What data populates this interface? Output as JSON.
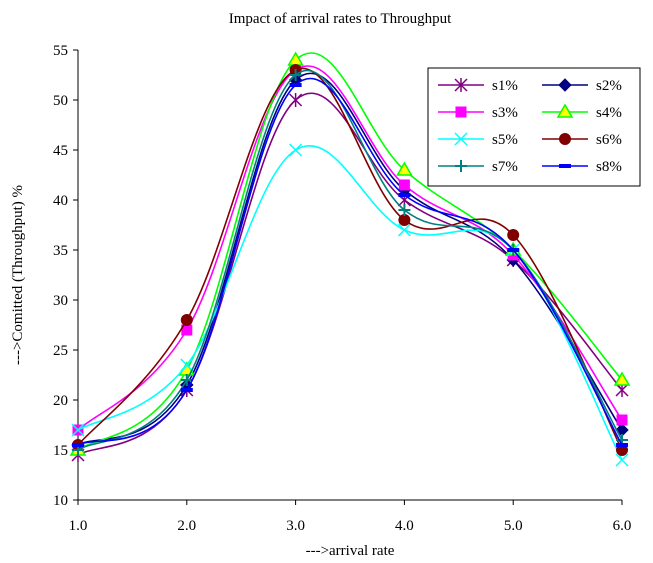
{
  "chart_data": {
    "type": "line",
    "title": "Impact of arrival rates to Throughput",
    "xlabel": "--->arrival rate",
    "ylabel": "--->Comitted (Throughput) %",
    "x": [
      1.0,
      2.0,
      3.0,
      4.0,
      5.0,
      6.0
    ],
    "x_tick_labels": [
      "1.0",
      "2.0",
      "3.0",
      "4.0",
      "5.0",
      "6.0"
    ],
    "xlim": [
      1.0,
      6.0
    ],
    "ylim": [
      10,
      55
    ],
    "y_ticks": [
      10,
      15,
      20,
      25,
      30,
      35,
      40,
      45,
      50,
      55
    ],
    "grid": false,
    "legend_position": "top-right",
    "series": [
      {
        "name": "s1%",
        "values": [
          14.5,
          21.0,
          50.0,
          40.0,
          34.0,
          21.0
        ],
        "color": "#800080",
        "marker": "asterisk"
      },
      {
        "name": "s2%",
        "values": [
          15.5,
          21.5,
          52.0,
          41.0,
          34.0,
          17.0
        ],
        "color": "#000080",
        "marker": "diamond"
      },
      {
        "name": "s3%",
        "values": [
          17.0,
          27.0,
          53.0,
          41.5,
          34.5,
          18.0
        ],
        "color": "#ff00ff",
        "marker": "square"
      },
      {
        "name": "s4%",
        "values": [
          15.0,
          23.0,
          54.0,
          43.0,
          35.0,
          22.0
        ],
        "color": "#00ff00",
        "marker": "triangle"
      },
      {
        "name": "s5%",
        "values": [
          17.0,
          23.5,
          45.0,
          37.0,
          35.0,
          14.0
        ],
        "color": "#00ffff",
        "marker": "x"
      },
      {
        "name": "s6%",
        "values": [
          15.5,
          28.0,
          53.0,
          38.0,
          36.5,
          15.0
        ],
        "color": "#800000",
        "marker": "circle"
      },
      {
        "name": "s7%",
        "values": [
          15.0,
          22.0,
          52.5,
          39.0,
          35.0,
          16.0
        ],
        "color": "#008080",
        "marker": "plus"
      },
      {
        "name": "s8%",
        "values": [
          15.5,
          21.0,
          51.5,
          40.5,
          35.0,
          15.5
        ],
        "color": "#0000ff",
        "marker": "dash"
      }
    ]
  }
}
